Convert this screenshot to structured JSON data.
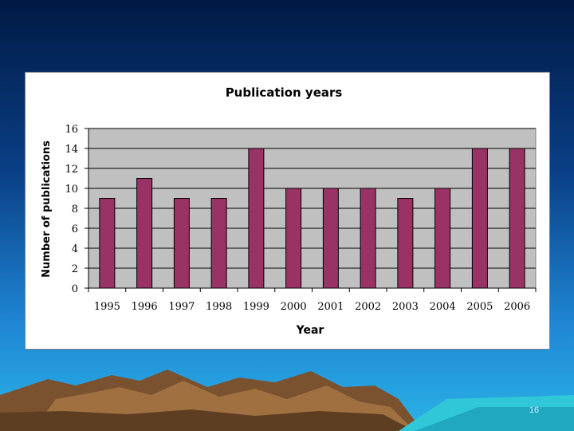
{
  "slide": {
    "number": "16"
  },
  "colors": {
    "bar": "#993366",
    "plot_area": "#c0c0c0",
    "grid": "#000000"
  },
  "chart_data": {
    "type": "bar",
    "title": "Publication years",
    "xlabel": "Year",
    "ylabel": "Number of publications",
    "categories": [
      "1995",
      "1996",
      "1997",
      "1998",
      "1999",
      "2000",
      "2001",
      "2002",
      "2003",
      "2004",
      "2005",
      "2006"
    ],
    "values": [
      9,
      11,
      9,
      9,
      14,
      10,
      10,
      10,
      9,
      10,
      14,
      14
    ],
    "ylim": [
      0,
      16
    ],
    "yticks": [
      0,
      2,
      4,
      6,
      8,
      10,
      12,
      14,
      16
    ],
    "grid": true,
    "legend": "none"
  }
}
